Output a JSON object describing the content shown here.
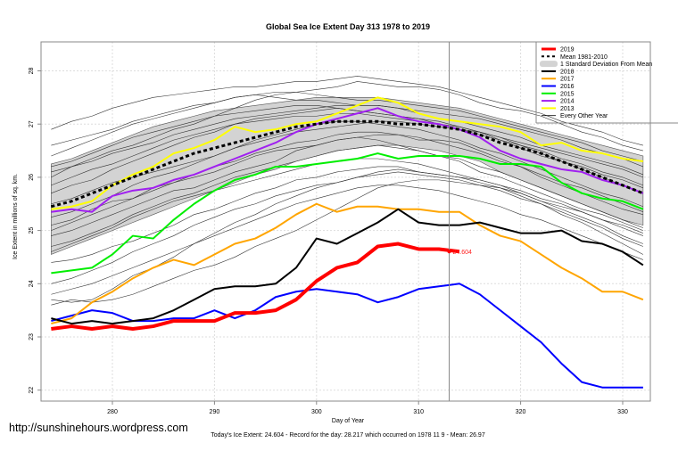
{
  "chart_data": {
    "type": "line",
    "title": "Global Sea Ice Extent Day 313 1978 to 2019",
    "xlabel": "Day of Year",
    "ylabel": "Ice Extent in millions of sq. km.",
    "xlim": [
      273,
      334
    ],
    "ylim": [
      21.8,
      28.6
    ],
    "xticks": [
      280,
      290,
      300,
      310,
      320,
      330
    ],
    "yticks": [
      22,
      23,
      24,
      25,
      26,
      27,
      28
    ],
    "grid": true,
    "current_day": 313,
    "x": [
      274,
      276,
      278,
      280,
      282,
      284,
      286,
      288,
      290,
      292,
      294,
      296,
      298,
      300,
      302,
      304,
      306,
      308,
      310,
      312,
      314,
      316,
      318,
      320,
      322,
      324,
      326,
      328,
      330,
      332
    ],
    "sd_band": {
      "name": "1 Standard Deviation From Mean",
      "upper": [
        26.25,
        26.35,
        26.5,
        26.65,
        26.8,
        26.95,
        27.05,
        27.15,
        27.25,
        27.3,
        27.35,
        27.4,
        27.45,
        27.5,
        27.5,
        27.5,
        27.5,
        27.45,
        27.4,
        27.35,
        27.3,
        27.2,
        27.1,
        27.0,
        26.9,
        26.8,
        26.7,
        26.6,
        26.5,
        26.4
      ],
      "lower": [
        24.55,
        24.7,
        24.85,
        25.0,
        25.15,
        25.3,
        25.45,
        25.6,
        25.75,
        25.9,
        26.05,
        26.15,
        26.3,
        26.4,
        26.5,
        26.55,
        26.6,
        26.6,
        26.55,
        26.5,
        26.4,
        26.3,
        26.1,
        25.95,
        25.8,
        25.65,
        25.5,
        25.35,
        25.2,
        25.1
      ]
    },
    "series": [
      {
        "name": "2019",
        "color": "#ff0000",
        "width": 4,
        "values": [
          23.15,
          23.2,
          23.15,
          23.2,
          23.15,
          23.2,
          23.3,
          23.3,
          23.3,
          23.45,
          23.45,
          23.5,
          23.7,
          24.05,
          24.3,
          24.4,
          24.7,
          24.75,
          24.65,
          24.65,
          24.604,
          null,
          null,
          null,
          null,
          null,
          null,
          null,
          null,
          null
        ]
      },
      {
        "name": "Mean 1981-2010",
        "color": "#000000",
        "width": 3,
        "dashed": true,
        "values": [
          25.45,
          25.55,
          25.7,
          25.85,
          26.0,
          26.15,
          26.3,
          26.45,
          26.55,
          26.65,
          26.75,
          26.85,
          26.95,
          27.0,
          27.05,
          27.05,
          27.05,
          27.0,
          27.0,
          26.95,
          26.9,
          26.8,
          26.65,
          26.55,
          26.45,
          26.3,
          26.15,
          26.0,
          25.85,
          25.7
        ]
      },
      {
        "name": "2018",
        "color": "#000000",
        "width": 2,
        "values": [
          23.35,
          23.25,
          23.3,
          23.25,
          23.3,
          23.35,
          23.5,
          23.7,
          23.9,
          23.95,
          23.95,
          24.0,
          24.3,
          24.85,
          24.75,
          24.95,
          25.15,
          25.4,
          25.15,
          25.1,
          25.1,
          25.15,
          25.05,
          24.95,
          24.95,
          25.0,
          24.8,
          24.75,
          24.6,
          24.35
        ]
      },
      {
        "name": "2017",
        "color": "#ffa500",
        "width": 2,
        "values": [
          23.25,
          23.35,
          23.65,
          23.85,
          24.1,
          24.3,
          24.45,
          24.35,
          24.55,
          24.75,
          24.85,
          25.05,
          25.3,
          25.5,
          25.35,
          25.45,
          25.45,
          25.4,
          25.4,
          25.35,
          25.35,
          25.1,
          24.9,
          24.8,
          24.55,
          24.3,
          24.1,
          23.85,
          23.85,
          23.7
        ]
      },
      {
        "name": "2016",
        "color": "#0000ff",
        "width": 2,
        "values": [
          23.3,
          23.4,
          23.5,
          23.45,
          23.3,
          23.3,
          23.35,
          23.35,
          23.5,
          23.35,
          23.5,
          23.75,
          23.85,
          23.9,
          23.85,
          23.8,
          23.65,
          23.75,
          23.9,
          23.95,
          24.0,
          23.8,
          23.5,
          23.2,
          22.9,
          22.5,
          22.15,
          22.05,
          22.05,
          22.05
        ]
      },
      {
        "name": "2015",
        "color": "#00ee00",
        "width": 2,
        "values": [
          24.2,
          24.25,
          24.3,
          24.55,
          24.9,
          24.85,
          25.2,
          25.5,
          25.75,
          25.95,
          26.05,
          26.2,
          26.2,
          26.25,
          26.3,
          26.35,
          26.45,
          26.35,
          26.4,
          26.4,
          26.4,
          26.35,
          26.25,
          26.25,
          26.2,
          25.9,
          25.7,
          25.6,
          25.55,
          25.4
        ]
      },
      {
        "name": "2014",
        "color": "#a020f0",
        "width": 2,
        "values": [
          25.35,
          25.4,
          25.35,
          25.65,
          25.75,
          25.8,
          25.95,
          26.05,
          26.2,
          26.35,
          26.5,
          26.65,
          26.85,
          27.0,
          27.1,
          27.2,
          27.3,
          27.15,
          27.05,
          27.0,
          26.9,
          26.75,
          26.5,
          26.35,
          26.25,
          26.15,
          26.1,
          25.95,
          25.85,
          25.7
        ]
      },
      {
        "name": "2013",
        "color": "#ffff00",
        "width": 2,
        "values": [
          25.4,
          25.45,
          25.55,
          25.85,
          26.05,
          26.2,
          26.45,
          26.55,
          26.7,
          26.95,
          26.85,
          26.9,
          27.0,
          27.05,
          27.2,
          27.35,
          27.5,
          27.4,
          27.2,
          27.1,
          27.05,
          27.0,
          26.95,
          26.85,
          26.6,
          26.65,
          26.5,
          26.45,
          26.35,
          26.3
        ]
      }
    ],
    "every_other_year": [
      [
        26.0,
        26.2,
        26.35,
        26.5,
        26.6,
        26.75,
        26.9,
        27.0,
        27.15,
        27.3,
        27.45,
        27.55,
        27.6,
        27.65,
        27.7,
        27.8,
        27.75,
        27.7,
        27.7,
        27.65,
        27.55,
        27.4,
        27.3,
        27.25,
        27.15,
        27.0,
        26.85,
        26.75,
        26.6,
        26.5
      ],
      [
        25.1,
        25.2,
        25.4,
        25.55,
        25.6,
        25.8,
        25.9,
        26.0,
        26.1,
        26.25,
        26.4,
        26.5,
        26.55,
        26.6,
        26.7,
        26.75,
        26.7,
        26.6,
        26.5,
        26.4,
        26.3,
        26.1,
        26.0,
        25.85,
        25.7,
        25.55,
        25.4,
        25.3,
        25.15,
        25.0
      ],
      [
        24.9,
        25.0,
        25.15,
        25.3,
        25.45,
        25.6,
        25.75,
        25.8,
        25.95,
        26.1,
        26.2,
        26.3,
        26.5,
        26.6,
        26.7,
        26.75,
        26.8,
        26.8,
        26.7,
        26.7,
        26.65,
        26.5,
        26.35,
        26.2,
        26.0,
        25.85,
        25.7,
        25.55,
        25.4,
        25.3
      ],
      [
        26.4,
        26.55,
        26.7,
        26.85,
        27.0,
        27.1,
        27.2,
        27.3,
        27.4,
        27.5,
        27.55,
        27.6,
        27.6,
        27.55,
        27.5,
        27.45,
        27.45,
        27.4,
        27.35,
        27.3,
        27.25,
        27.15,
        27.05,
        26.95,
        26.85,
        26.75,
        26.65,
        26.5,
        26.4,
        26.3
      ],
      [
        25.7,
        25.85,
        25.95,
        26.15,
        26.3,
        26.45,
        26.6,
        26.75,
        26.85,
        27.0,
        27.1,
        27.15,
        27.2,
        27.25,
        27.3,
        27.25,
        27.2,
        27.15,
        27.1,
        27.0,
        26.9,
        26.8,
        26.7,
        26.55,
        26.4,
        26.3,
        26.15,
        26.0,
        25.85,
        25.7
      ],
      [
        24.0,
        24.1,
        24.25,
        24.4,
        24.6,
        24.75,
        24.9,
        25.1,
        25.25,
        25.4,
        25.5,
        25.65,
        25.75,
        25.85,
        25.9,
        26.0,
        26.05,
        26.1,
        26.05,
        26.0,
        25.95,
        25.85,
        25.8,
        25.7,
        25.55,
        25.45,
        25.35,
        25.2,
        25.1,
        24.95
      ],
      [
        23.6,
        23.7,
        23.65,
        23.7,
        23.8,
        23.95,
        24.1,
        24.25,
        24.35,
        24.5,
        24.7,
        24.85,
        25.0,
        25.2,
        25.4,
        25.6,
        25.8,
        25.9,
        25.95,
        25.95,
        25.9,
        25.85,
        25.75,
        25.6,
        25.5,
        25.35,
        25.2,
        25.05,
        24.85,
        24.7
      ],
      [
        25.5,
        25.6,
        25.75,
        25.9,
        26.0,
        26.1,
        26.2,
        26.3,
        26.4,
        26.55,
        26.65,
        26.75,
        26.85,
        26.9,
        26.95,
        27.0,
        27.05,
        27.05,
        27.0,
        26.95,
        26.9,
        26.85,
        26.7,
        26.6,
        26.45,
        26.3,
        26.2,
        26.05,
        25.95,
        25.8
      ],
      [
        24.4,
        24.45,
        24.55,
        24.7,
        24.8,
        24.95,
        25.1,
        25.3,
        25.4,
        25.55,
        25.7,
        25.8,
        25.95,
        26.0,
        26.1,
        26.15,
        26.2,
        26.2,
        26.1,
        26.05,
        26.0,
        25.95,
        25.85,
        25.75,
        25.6,
        25.5,
        25.35,
        25.2,
        25.05,
        24.9
      ],
      [
        26.6,
        26.7,
        26.8,
        26.9,
        27.05,
        27.15,
        27.25,
        27.35,
        27.4,
        27.5,
        27.55,
        27.5,
        27.45,
        27.45,
        27.4,
        27.35,
        27.35,
        27.3,
        27.2,
        27.1,
        27.05,
        26.95,
        26.85,
        26.75,
        26.6,
        26.5,
        26.4,
        26.3,
        26.2,
        26.05
      ],
      [
        25.85,
        26.0,
        26.15,
        26.25,
        26.4,
        26.55,
        26.7,
        26.8,
        26.9,
        27.0,
        27.05,
        27.1,
        27.15,
        27.15,
        27.2,
        27.2,
        27.15,
        27.1,
        27.05,
        27.0,
        26.95,
        26.85,
        26.75,
        26.6,
        26.5,
        26.35,
        26.25,
        26.1,
        26.0,
        25.85
      ],
      [
        24.7,
        24.8,
        24.95,
        25.1,
        25.3,
        25.45,
        25.6,
        25.7,
        25.85,
        26.0,
        26.1,
        26.2,
        26.3,
        26.4,
        26.5,
        26.55,
        26.6,
        26.55,
        26.5,
        26.4,
        26.35,
        26.2,
        26.1,
        25.95,
        25.8,
        25.65,
        25.5,
        25.35,
        25.2,
        25.05
      ],
      [
        26.9,
        27.05,
        27.15,
        27.3,
        27.4,
        27.5,
        27.55,
        27.6,
        27.65,
        27.7,
        27.7,
        27.75,
        27.8,
        27.8,
        27.85,
        27.9,
        27.85,
        27.8,
        27.75,
        27.7,
        27.6,
        27.5,
        27.4,
        27.3,
        27.2,
        27.05,
        26.95,
        26.85,
        26.7,
        26.6
      ],
      [
        25.25,
        25.35,
        25.5,
        25.65,
        25.85,
        26.0,
        26.1,
        26.25,
        26.4,
        26.55,
        26.7,
        26.8,
        26.9,
        27.0,
        27.05,
        27.05,
        27.0,
        26.95,
        26.9,
        26.8,
        26.7,
        26.55,
        26.45,
        26.3,
        26.15,
        26.0,
        25.85,
        25.7,
        25.6,
        25.45
      ],
      [
        23.8,
        23.9,
        24.0,
        24.15,
        24.3,
        24.45,
        24.6,
        24.75,
        24.9,
        25.05,
        25.2,
        25.35,
        25.5,
        25.6,
        25.7,
        25.8,
        25.85,
        25.85,
        25.8,
        25.75,
        25.65,
        25.55,
        25.45,
        25.3,
        25.2,
        25.05,
        24.9,
        24.75,
        24.6,
        24.45
      ],
      [
        26.2,
        26.3,
        26.45,
        26.6,
        26.75,
        26.85,
        26.95,
        27.05,
        27.15,
        27.2,
        27.25,
        27.3,
        27.35,
        27.35,
        27.3,
        27.25,
        27.2,
        27.15,
        27.1,
        27.05,
        26.95,
        26.85,
        26.75,
        26.65,
        26.55,
        26.45,
        26.35,
        26.25,
        26.15,
        26.0
      ],
      [
        25.0,
        25.15,
        25.3,
        25.45,
        25.6,
        25.75,
        25.9,
        26.05,
        26.2,
        26.3,
        26.45,
        26.55,
        26.65,
        26.7,
        26.8,
        26.85,
        26.85,
        26.8,
        26.75,
        26.65,
        26.55,
        26.45,
        26.3,
        26.2,
        26.05,
        25.9,
        25.8,
        25.65,
        25.5,
        25.35
      ],
      [
        24.6,
        24.75,
        24.9,
        25.05,
        25.25,
        25.4,
        25.55,
        25.65,
        25.75,
        25.85,
        25.95,
        26.05,
        26.15,
        26.25,
        26.3,
        26.35,
        26.35,
        26.3,
        26.25,
        26.15,
        26.05,
        25.95,
        25.85,
        25.7,
        25.55,
        25.4,
        25.25,
        25.1,
        24.9,
        24.75
      ],
      [
        26.1,
        26.2,
        26.3,
        26.45,
        26.55,
        26.65,
        26.8,
        26.9,
        27.0,
        27.1,
        27.15,
        27.2,
        27.25,
        27.3,
        27.35,
        27.35,
        27.35,
        27.3,
        27.25,
        27.2,
        27.15,
        27.1,
        27.0,
        26.9,
        26.8,
        26.7,
        26.55,
        26.45,
        26.35,
        26.2
      ],
      [
        23.7,
        23.65,
        23.7,
        23.9,
        24.15,
        24.3,
        24.5,
        24.75,
        24.95,
        25.15,
        25.3,
        25.5,
        25.65,
        25.8,
        25.9,
        26.0,
        26.1,
        26.15,
        26.1,
        26.05,
        26.0,
        25.9,
        25.8,
        25.65,
        25.5,
        25.3,
        25.15,
        24.95,
        24.75,
        24.55
      ]
    ],
    "annotation": {
      "x": 313,
      "y": 24.604,
      "text": "24.604"
    },
    "legend": {
      "placement": "top-right",
      "entries": [
        {
          "label": "2019",
          "color": "#ff0000",
          "style": "thick"
        },
        {
          "label": "Mean 1981-2010",
          "color": "#000000",
          "style": "dashed"
        },
        {
          "label": "1 Standard Deviation From Mean",
          "color": "#d3d3d3",
          "style": "band"
        },
        {
          "label": "2018",
          "color": "#000000",
          "style": "line"
        },
        {
          "label": "2017",
          "color": "#ffa500",
          "style": "line"
        },
        {
          "label": "2016",
          "color": "#0000ff",
          "style": "line"
        },
        {
          "label": "2015",
          "color": "#00ee00",
          "style": "line"
        },
        {
          "label": "2014",
          "color": "#a020f0",
          "style": "line"
        },
        {
          "label": "2013",
          "color": "#ffff00",
          "style": "line"
        },
        {
          "label": "Every Other Year",
          "color": "#000000",
          "style": "thin"
        }
      ]
    }
  },
  "footer": {
    "watermark": "http://sunshinehours.wordpress.com",
    "summary": "Today's Ice Extent: 24.604  - Record for the day: 28.217 which occurred on 1978 11 9  - Mean: 26.97"
  }
}
